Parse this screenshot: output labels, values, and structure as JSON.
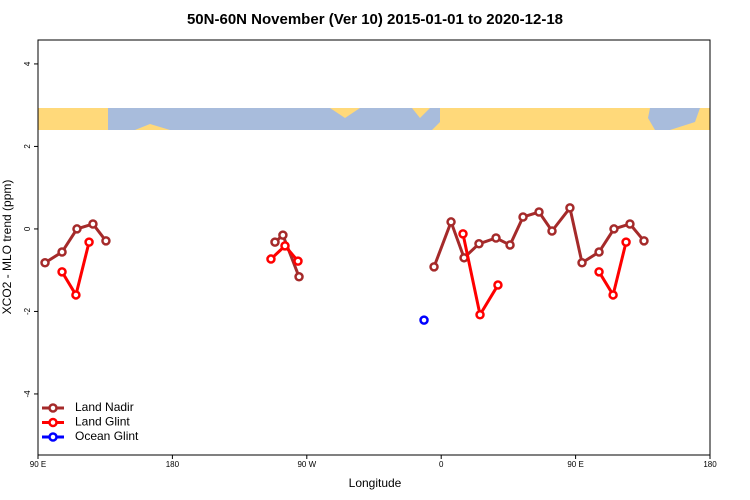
{
  "chart_data": {
    "type": "line",
    "title": "50N-60N November (Ver 10)   2015-01-01 to 2020-12-18",
    "xlabel": "Longitude",
    "ylabel": "XCO2 - MLO trend (ppm)",
    "xlim": [
      90,
      540
    ],
    "ylim": [
      -5.48,
      4.58
    ],
    "xticks": [
      {
        "value": 90,
        "label": "90 E"
      },
      180,
      {
        "value": 270,
        "label": "90 W"
      },
      {
        "value": 360,
        "label": "0"
      },
      {
        "value": 450,
        "label": "90 E"
      },
      {
        "value": 540,
        "label": "180"
      }
    ],
    "yticks": [
      -4,
      -2,
      0,
      2,
      4
    ],
    "legend": "bottom-left",
    "series": [
      {
        "name": "Land Nadir",
        "color": "#a52a2a",
        "x": [
          94.7,
          106.1,
          116.1,
          126.8,
          135.5,
          null,
          248.7,
          254.0,
          264.8,
          null,
          355.2,
          366.6,
          375.3,
          385.3,
          396.7,
          406.1,
          414.8,
          425.5,
          434.2,
          446.2,
          454.3,
          465.7,
          475.7,
          486.4,
          495.8
        ],
        "values": [
          -0.82,
          -0.56,
          0,
          0.12,
          -0.29,
          null,
          -0.32,
          -0.15,
          -1.16,
          null,
          -0.92,
          0.17,
          -0.7,
          -0.36,
          -0.22,
          -0.39,
          0.29,
          0.41,
          -0.05,
          0.51,
          -0.82,
          -0.56,
          0,
          0.12,
          -0.29
        ]
      },
      {
        "name": "Land Glint",
        "color": "#ff0000",
        "x": [
          106.1,
          115.4,
          124.2,
          null,
          246.0,
          255.4,
          264.1,
          null,
          374.6,
          386.0,
          398.0,
          null,
          465.7,
          475.1,
          483.8
        ],
        "values": [
          -1.04,
          -1.6,
          -0.32,
          null,
          -0.73,
          -0.41,
          -0.78,
          null,
          -0.12,
          -2.08,
          -1.36,
          null,
          -1.04,
          -1.6,
          -0.32
        ]
      },
      {
        "name": "Ocean Glint",
        "color": "#0000ff",
        "x": [
          348.5
        ],
        "values": [
          -2.21
        ]
      }
    ]
  }
}
